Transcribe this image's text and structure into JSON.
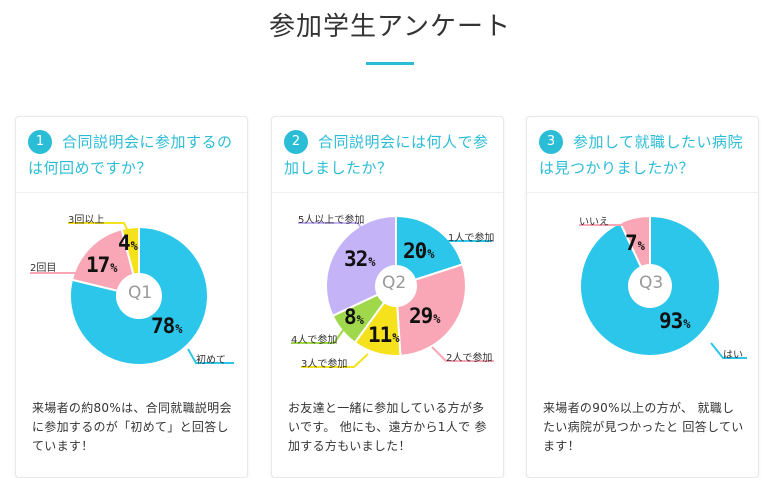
{
  "page": {
    "title": "参加学生アンケート"
  },
  "colors": {
    "accent": "#2cbdd6",
    "cyan": "#2cc6ea",
    "pink": "#f9a7b6",
    "yellow": "#f5e21c",
    "purple": "#c5b3f7",
    "green": "#9fd84a"
  },
  "cards": [
    {
      "number": "1",
      "question": "合同説明会に参加するのは何回めですか？",
      "center_label": "Q1",
      "description": "来場者の約80%は、合同就職説明会に参加するのが「初めて」と回答しています！"
    },
    {
      "number": "2",
      "question": "合同説明会には何人で参加しましたか？",
      "center_label": "Q2",
      "description": "お友達と一緒に参加している方が多いです。 他にも、遠方から1人で 参加する方もいました！"
    },
    {
      "number": "3",
      "question": "参加して就職したい病院は見つかりましたか？",
      "center_label": "Q3",
      "description": "来場者の90%以上の方が、 就職したい病院が見つかったと 回答しています！"
    }
  ],
  "chart_data": [
    {
      "type": "pie",
      "title": "",
      "categories": [
        "初めて",
        "2回目",
        "3回以上"
      ],
      "values": [
        78,
        17,
        4
      ],
      "value_labels": [
        "78",
        "17",
        "4"
      ],
      "unit": "%",
      "colors": [
        "#2cc6ea",
        "#f9a7b6",
        "#f5e21c"
      ]
    },
    {
      "type": "pie",
      "title": "",
      "categories": [
        "1人で参加",
        "2人で参加",
        "3人で参加",
        "4人で参加",
        "5人以上で参加"
      ],
      "values": [
        20,
        29,
        11,
        8,
        32
      ],
      "value_labels": [
        "20",
        "29",
        "11",
        "8",
        "32"
      ],
      "unit": "%",
      "colors": [
        "#2cc6ea",
        "#f9a7b6",
        "#f5e21c",
        "#9fd84a",
        "#c5b3f7"
      ]
    },
    {
      "type": "pie",
      "title": "",
      "categories": [
        "はい",
        "いいえ"
      ],
      "values": [
        93,
        7
      ],
      "value_labels": [
        "93",
        "7"
      ],
      "unit": "%",
      "colors": [
        "#2cc6ea",
        "#f9a7b6"
      ]
    }
  ]
}
